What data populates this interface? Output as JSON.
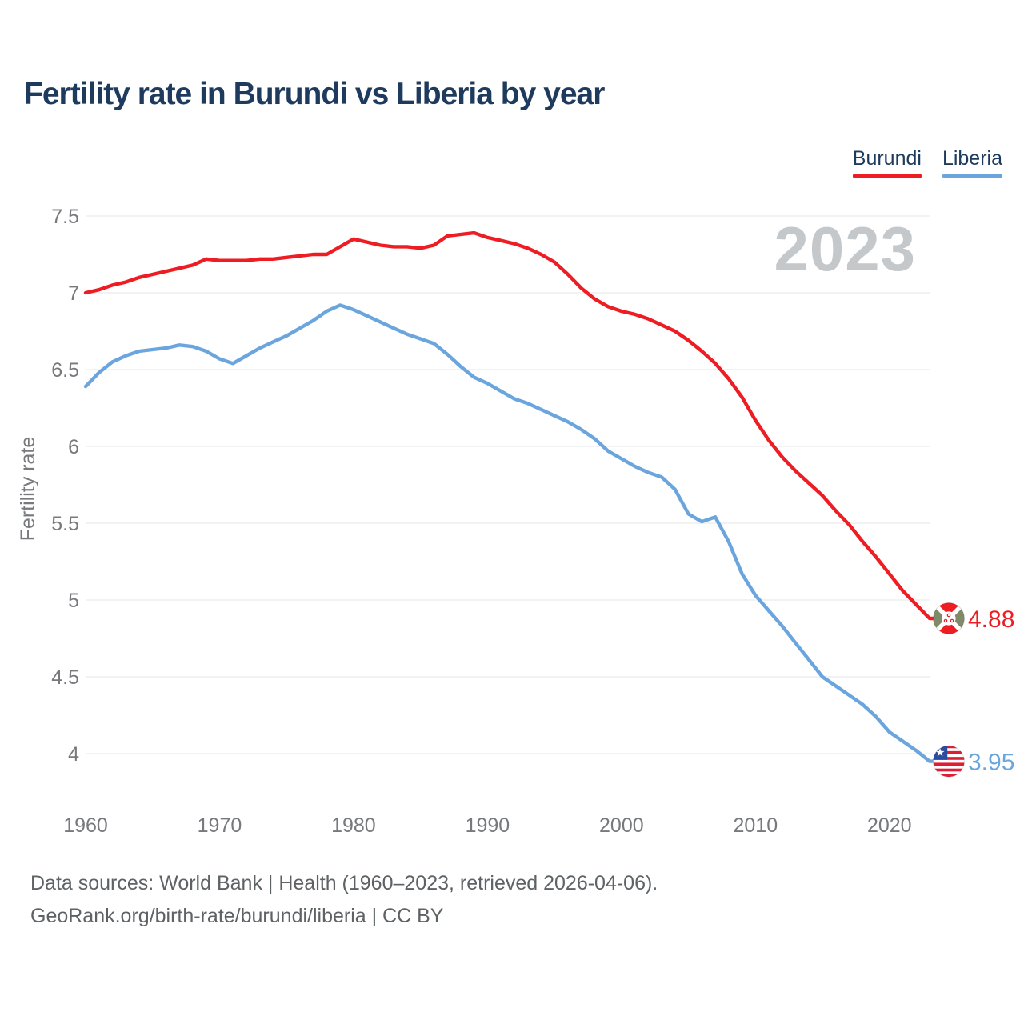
{
  "title": "Fertility rate in Burundi vs Liberia by year",
  "watermark": "2023",
  "footer": {
    "line1": "Data sources: World Bank | Health (1960–2023, retrieved 2026-04-06).",
    "line2": "GeoRank.org/birth-rate/burundi/liberia | CC BY"
  },
  "colors": {
    "burundi": "#ee1d23",
    "liberia": "#6aa5de",
    "title_navy": "#1e3a5c",
    "axis_gray": "#77797c",
    "gridline": "#ebebeb",
    "watermark_gray": "#c5c8cb"
  },
  "chart_data": {
    "type": "line",
    "title": "Fertility rate in Burundi vs Liberia by year",
    "xlabel": "",
    "ylabel": "Fertility rate",
    "grid": "horizontal",
    "legend_position": "top-right",
    "xlim": [
      1960,
      2023
    ],
    "ylim": [
      3.8,
      7.6
    ],
    "x_ticks": [
      {
        "v": 1960,
        "label": "1960"
      },
      {
        "v": 1970,
        "label": "1970"
      },
      {
        "v": 1980,
        "label": "1980"
      },
      {
        "v": 1990,
        "label": "1990"
      },
      {
        "v": 2000,
        "label": "2000"
      },
      {
        "v": 2010,
        "label": "2010"
      },
      {
        "v": 2020,
        "label": "2020"
      }
    ],
    "y_ticks": [
      {
        "v": 7.5,
        "label": "7.5"
      },
      {
        "v": 7,
        "label": "7"
      },
      {
        "v": 6.5,
        "label": "6.5"
      },
      {
        "v": 6,
        "label": "6"
      },
      {
        "v": 5.5,
        "label": "5.5"
      },
      {
        "v": 5,
        "label": "5"
      },
      {
        "v": 4.5,
        "label": "4.5"
      },
      {
        "v": 4,
        "label": "4"
      }
    ],
    "x": [
      1960,
      1961,
      1962,
      1963,
      1964,
      1965,
      1966,
      1967,
      1968,
      1969,
      1970,
      1971,
      1972,
      1973,
      1974,
      1975,
      1976,
      1977,
      1978,
      1979,
      1980,
      1981,
      1982,
      1983,
      1984,
      1985,
      1986,
      1987,
      1988,
      1989,
      1990,
      1991,
      1992,
      1993,
      1994,
      1995,
      1996,
      1997,
      1998,
      1999,
      2000,
      2001,
      2002,
      2003,
      2004,
      2005,
      2006,
      2007,
      2008,
      2009,
      2010,
      2011,
      2012,
      2013,
      2014,
      2015,
      2016,
      2017,
      2018,
      2019,
      2020,
      2021,
      2022,
      2023
    ],
    "series": [
      {
        "name": "Burundi",
        "color": "#ee1d23",
        "end_label": "4.88",
        "flag": "burundi-flag-icon",
        "values": [
          7.0,
          7.02,
          7.05,
          7.07,
          7.1,
          7.12,
          7.14,
          7.16,
          7.18,
          7.22,
          7.21,
          7.21,
          7.21,
          7.22,
          7.22,
          7.23,
          7.24,
          7.25,
          7.25,
          7.3,
          7.35,
          7.33,
          7.31,
          7.3,
          7.3,
          7.29,
          7.31,
          7.37,
          7.38,
          7.39,
          7.36,
          7.34,
          7.32,
          7.29,
          7.25,
          7.2,
          7.12,
          7.03,
          6.96,
          6.91,
          6.88,
          6.86,
          6.83,
          6.79,
          6.75,
          6.69,
          6.62,
          6.54,
          6.44,
          6.32,
          6.17,
          6.04,
          5.93,
          5.84,
          5.76,
          5.68,
          5.58,
          5.49,
          5.38,
          5.28,
          5.17,
          5.06,
          4.97,
          4.88
        ]
      },
      {
        "name": "Liberia",
        "color": "#6aa5de",
        "end_label": "3.95",
        "flag": "liberia-flag-icon",
        "values": [
          6.39,
          6.48,
          6.55,
          6.59,
          6.62,
          6.63,
          6.64,
          6.66,
          6.65,
          6.62,
          6.57,
          6.54,
          6.59,
          6.64,
          6.68,
          6.72,
          6.77,
          6.82,
          6.88,
          6.92,
          6.89,
          6.85,
          6.81,
          6.77,
          6.73,
          6.7,
          6.67,
          6.6,
          6.52,
          6.45,
          6.41,
          6.36,
          6.31,
          6.28,
          6.24,
          6.2,
          6.16,
          6.11,
          6.05,
          5.97,
          5.92,
          5.87,
          5.83,
          5.8,
          5.72,
          5.56,
          5.51,
          5.54,
          5.38,
          5.17,
          5.03,
          4.93,
          4.83,
          4.72,
          4.61,
          4.5,
          4.44,
          4.38,
          4.32,
          4.24,
          4.14,
          4.08,
          4.02,
          3.95
        ]
      }
    ]
  }
}
